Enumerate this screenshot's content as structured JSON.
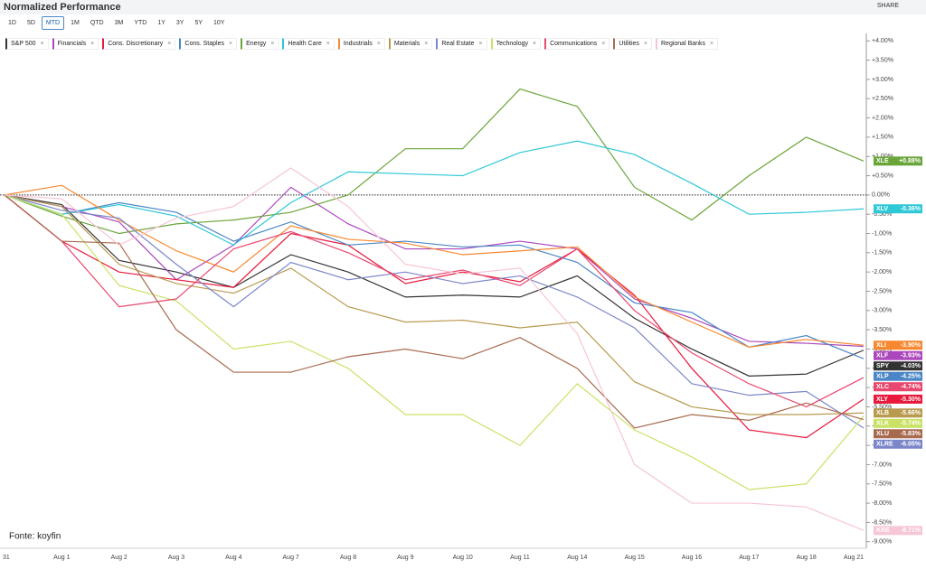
{
  "header": {
    "title": "Normalized Performance",
    "share": "SHARE"
  },
  "tabs": {
    "items": [
      "1D",
      "5D",
      "MTD",
      "1M",
      "QTD",
      "3M",
      "YTD",
      "1Y",
      "3Y",
      "5Y",
      "10Y"
    ],
    "selected": 2
  },
  "chart_data": {
    "type": "line",
    "annotation": "Fonte: koyfin",
    "categories": [
      "31",
      "Aug 1",
      "Aug 2",
      "Aug 3",
      "Aug 4",
      "Aug 7",
      "Aug 8",
      "Aug 9",
      "Aug 10",
      "Aug 11",
      "Aug 14",
      "Aug 15",
      "Aug 16",
      "Aug 17",
      "Aug 18",
      "Aug 21"
    ],
    "ylim": [
      -9.1,
      4.1
    ],
    "yticks": [
      {
        "value": 4,
        "label": "+4.00%"
      },
      {
        "value": 3.5,
        "label": "+3.50%"
      },
      {
        "value": 3,
        "label": "+3.00%"
      },
      {
        "value": 2.5,
        "label": "+2.50%"
      },
      {
        "value": 2,
        "label": "+2.00%"
      },
      {
        "value": 1.5,
        "label": "+1.50%"
      },
      {
        "value": 1,
        "label": "+1.00%"
      },
      {
        "value": 0.5,
        "label": "+0.50%"
      },
      {
        "value": 0,
        "label": "0.00%"
      },
      {
        "value": -0.5,
        "label": "-0.50%"
      },
      {
        "value": -1,
        "label": "-1.00%"
      },
      {
        "value": -1.5,
        "label": "-1.50%"
      },
      {
        "value": -2,
        "label": "-2.00%"
      },
      {
        "value": -2.5,
        "label": "-2.50%"
      },
      {
        "value": -3,
        "label": "-3.00%"
      },
      {
        "value": -3.5,
        "label": "-3.50%"
      },
      {
        "value": -4,
        "label": "-4.00%"
      },
      {
        "value": -4.5,
        "label": "-4.50%"
      },
      {
        "value": -5,
        "label": "-5.00%"
      },
      {
        "value": -5.5,
        "label": "-5.50%"
      },
      {
        "value": -6,
        "label": "-6.00%"
      },
      {
        "value": -6.5,
        "label": "-6.50%"
      },
      {
        "value": -7,
        "label": "-7.00%"
      },
      {
        "value": -7.5,
        "label": "-7.50%"
      },
      {
        "value": -8,
        "label": "-8.00%"
      },
      {
        "value": -8.5,
        "label": "-8.50%"
      },
      {
        "value": -9,
        "label": "-9.00%"
      }
    ],
    "series": [
      {
        "name": "S&P 500",
        "ticker": "SPY",
        "color": "#333333",
        "values": [
          0,
          -0.25,
          -1.7,
          -2.0,
          -2.4,
          -1.55,
          -2.0,
          -2.65,
          -2.6,
          -2.65,
          -2.1,
          -3.2,
          -4.0,
          -4.7,
          -4.65,
          -4.03
        ],
        "value_label": "-4.03%"
      },
      {
        "name": "Financials",
        "ticker": "XLF",
        "color": "#ab47bc",
        "values": [
          0,
          -0.3,
          -0.7,
          -2.2,
          -1.3,
          0.2,
          -0.75,
          -1.4,
          -1.4,
          -1.2,
          -1.4,
          -2.7,
          -3.2,
          -3.8,
          -3.85,
          -3.93
        ],
        "value_label": "-3.93%"
      },
      {
        "name": "Cons. Discretionary",
        "ticker": "XLY",
        "color": "#e8193c",
        "values": [
          0,
          -1.2,
          -2.0,
          -2.2,
          -2.4,
          -1.0,
          -1.3,
          -2.3,
          -2.0,
          -2.25,
          -1.4,
          -2.6,
          -4.5,
          -6.1,
          -6.3,
          -5.3
        ],
        "value_label": "-5.30%"
      },
      {
        "name": "Cons. Staples",
        "ticker": "XLP",
        "color": "#4a86c5",
        "values": [
          0,
          -0.5,
          -0.2,
          -0.45,
          -1.2,
          -0.7,
          -1.3,
          -1.2,
          -1.35,
          -1.3,
          -1.75,
          -2.8,
          -3.05,
          -3.95,
          -3.65,
          -4.25
        ],
        "value_label": "-4.25%"
      },
      {
        "name": "Energy",
        "ticker": "XLE",
        "color": "#6aa53a",
        "values": [
          0,
          -0.55,
          -1.0,
          -0.75,
          -0.65,
          -0.45,
          0.0,
          1.2,
          1.2,
          2.75,
          2.3,
          0.2,
          -0.65,
          0.5,
          1.5,
          0.88
        ],
        "value_label": "+0.88%"
      },
      {
        "name": "Health Care",
        "ticker": "XLV",
        "color": "#2ec8d6",
        "values": [
          0,
          -0.5,
          -0.25,
          -0.55,
          -1.3,
          -0.2,
          0.6,
          0.55,
          0.5,
          1.1,
          1.4,
          1.05,
          0.3,
          -0.5,
          -0.45,
          -0.36
        ],
        "value_label": "-0.36%"
      },
      {
        "name": "Industrials",
        "ticker": "XLI",
        "color": "#f7882f",
        "values": [
          0,
          0.25,
          -0.65,
          -1.45,
          -2.0,
          -0.8,
          -1.15,
          -1.25,
          -1.55,
          -1.45,
          -1.35,
          -2.65,
          -3.3,
          -3.95,
          -3.75,
          -3.9
        ],
        "value_label": "-3.90%"
      },
      {
        "name": "Materials",
        "ticker": "XLB",
        "color": "#b89a4e",
        "values": [
          0,
          -0.3,
          -1.8,
          -2.3,
          -2.55,
          -1.9,
          -2.9,
          -3.3,
          -3.25,
          -3.45,
          -3.3,
          -4.85,
          -5.5,
          -5.7,
          -5.7,
          -5.66
        ],
        "value_label": "-5.66%"
      },
      {
        "name": "Real Estate",
        "ticker": "XLRE",
        "color": "#7b86c9",
        "values": [
          0,
          -0.4,
          -0.6,
          -1.8,
          -2.9,
          -1.75,
          -2.2,
          -2.0,
          -2.3,
          -2.1,
          -2.65,
          -3.45,
          -4.9,
          -5.2,
          -5.1,
          -6.05
        ],
        "value_label": "-6.05%"
      },
      {
        "name": "Technology",
        "ticker": "XLK",
        "color": "#c9e265",
        "values": [
          0,
          -0.5,
          -2.35,
          -2.75,
          -4.0,
          -3.8,
          -4.5,
          -5.7,
          -5.7,
          -6.5,
          -4.9,
          -6.1,
          -6.8,
          -7.65,
          -7.5,
          -5.74
        ],
        "value_label": "-5.74%"
      },
      {
        "name": "Communications",
        "ticker": "XLC",
        "color": "#e8476f",
        "values": [
          0,
          -1.2,
          -2.9,
          -2.7,
          -1.4,
          -0.95,
          -1.5,
          -2.2,
          -1.95,
          -2.35,
          -1.4,
          -3.0,
          -4.1,
          -4.9,
          -5.5,
          -4.74
        ],
        "value_label": "-4.74%"
      },
      {
        "name": "Utilities",
        "ticker": "XLU",
        "color": "#a86a4f",
        "values": [
          0,
          -1.2,
          -1.25,
          -3.5,
          -4.6,
          -4.6,
          -4.2,
          -4.0,
          -4.25,
          -3.7,
          -4.5,
          -6.05,
          -5.7,
          -5.85,
          -5.4,
          -5.83
        ],
        "value_label": "-5.83%"
      },
      {
        "name": "Regional Banks",
        "ticker": "KRE",
        "color": "#f6c6d6",
        "values": [
          0,
          -0.1,
          -1.3,
          -0.6,
          -0.3,
          0.7,
          -0.3,
          -1.8,
          -2.05,
          -1.9,
          -3.6,
          -7.0,
          -8.0,
          -8.0,
          -8.1,
          -8.71
        ],
        "value_label": "-8.71%"
      }
    ]
  }
}
